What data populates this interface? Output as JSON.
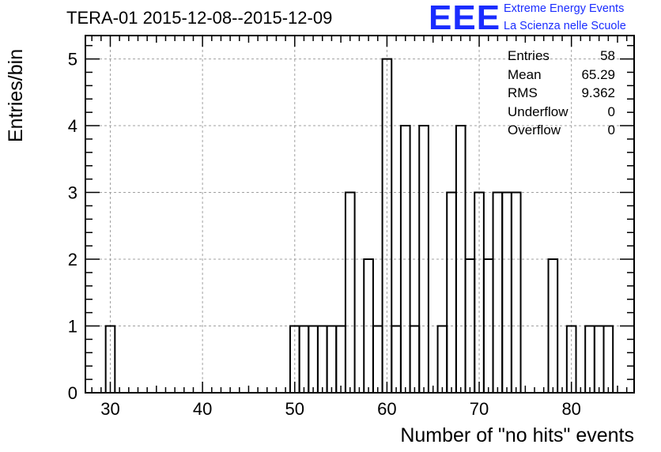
{
  "chart_data": {
    "type": "bar",
    "title": "TERA-01 2015-12-08--2015-12-09",
    "xlabel": "Number of \"no hits\" events",
    "ylabel": "Entries/bin",
    "xlim": [
      27.3,
      86.8
    ],
    "ylim": [
      0,
      5.35
    ],
    "x_ticks": [
      30,
      40,
      50,
      60,
      70,
      80
    ],
    "y_ticks": [
      0,
      1,
      2,
      3,
      4,
      5
    ],
    "grid": true,
    "bin_width": 1,
    "bins": [
      {
        "x": 30,
        "count": 1
      },
      {
        "x": 50,
        "count": 1
      },
      {
        "x": 51,
        "count": 1
      },
      {
        "x": 52,
        "count": 1
      },
      {
        "x": 53,
        "count": 1
      },
      {
        "x": 54,
        "count": 1
      },
      {
        "x": 55,
        "count": 1
      },
      {
        "x": 56,
        "count": 3
      },
      {
        "x": 58,
        "count": 2
      },
      {
        "x": 59,
        "count": 1
      },
      {
        "x": 60,
        "count": 5
      },
      {
        "x": 61,
        "count": 1
      },
      {
        "x": 62,
        "count": 4
      },
      {
        "x": 63,
        "count": 1
      },
      {
        "x": 64,
        "count": 4
      },
      {
        "x": 66,
        "count": 1
      },
      {
        "x": 67,
        "count": 3
      },
      {
        "x": 68,
        "count": 4
      },
      {
        "x": 69,
        "count": 2
      },
      {
        "x": 70,
        "count": 3
      },
      {
        "x": 71,
        "count": 2
      },
      {
        "x": 72,
        "count": 3
      },
      {
        "x": 73,
        "count": 3
      },
      {
        "x": 74,
        "count": 3
      },
      {
        "x": 78,
        "count": 2
      },
      {
        "x": 80,
        "count": 1
      },
      {
        "x": 82,
        "count": 1
      },
      {
        "x": 83,
        "count": 1
      },
      {
        "x": 84,
        "count": 1
      }
    ],
    "stats": [
      {
        "label": "Entries",
        "value": "58"
      },
      {
        "label": "Mean",
        "value": "65.29"
      },
      {
        "label": "RMS",
        "value": "9.362"
      },
      {
        "label": "Underflow",
        "value": "0"
      },
      {
        "label": "Overflow",
        "value": "0"
      }
    ]
  },
  "logo": {
    "mark": "EEE",
    "line1": "Extreme Energy Events",
    "line2": "La Scienza nelle Scuole",
    "color": "#1a2cff"
  }
}
